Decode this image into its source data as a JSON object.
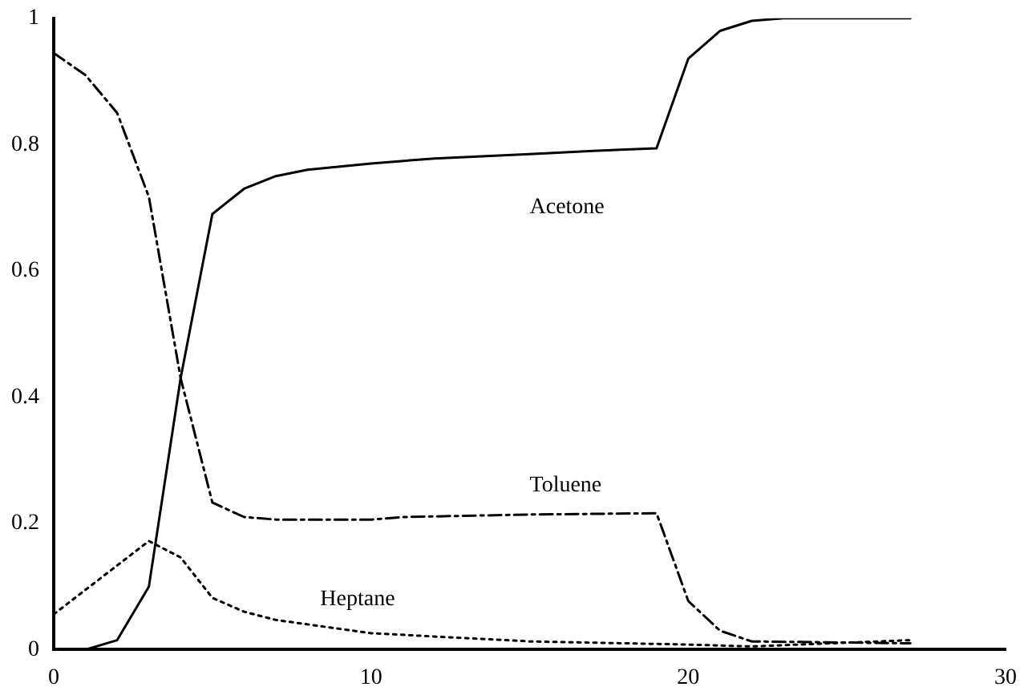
{
  "chart_data": {
    "type": "line",
    "xlim": [
      0,
      30
    ],
    "xticks": [
      0,
      10,
      20,
      30
    ],
    "ylim": [
      0,
      1
    ],
    "yticks": [
      0,
      {
        "value": 0.2,
        "label": "0.2"
      },
      {
        "value": 0.4,
        "label": "0.4"
      },
      {
        "value": 0.6,
        "label": "0.6"
      },
      {
        "value": 0.8,
        "label": "0.8"
      },
      1
    ],
    "grid": false,
    "legend": false,
    "marker": "none",
    "series": [
      {
        "name": "Acetone",
        "color": "#000000",
        "line_style": "solid",
        "x": [
          0,
          1,
          2,
          3,
          4,
          5,
          6,
          7,
          8,
          10,
          12,
          15,
          17,
          19,
          20,
          21,
          22,
          23,
          27
        ],
        "values": [
          0,
          0,
          0.015,
          0.1,
          0.43,
          0.69,
          0.73,
          0.75,
          0.76,
          0.77,
          0.778,
          0.785,
          0.79,
          0.794,
          0.936,
          0.98,
          0.996,
          1,
          1
        ]
      },
      {
        "name": "Toluene",
        "color": "#000000",
        "line_style": "dashed",
        "x": [
          0,
          1,
          2,
          3,
          4,
          5,
          6,
          7,
          10,
          11,
          15,
          19,
          20,
          21,
          22,
          27
        ],
        "values": [
          0.945,
          0.91,
          0.85,
          0.717,
          0.43,
          0.233,
          0.21,
          0.206,
          0.206,
          0.21,
          0.214,
          0.216,
          0.077,
          0.03,
          0.013,
          0.01
        ]
      },
      {
        "name": "Heptane",
        "color": "#000000",
        "line_style": "dotted",
        "x": [
          0,
          3,
          4,
          5,
          6,
          7,
          10,
          15,
          20,
          22,
          27
        ],
        "values": [
          0.056,
          0.172,
          0.146,
          0.082,
          0.06,
          0.047,
          0.026,
          0.013,
          0.008,
          0.005,
          0.015
        ]
      }
    ]
  }
}
